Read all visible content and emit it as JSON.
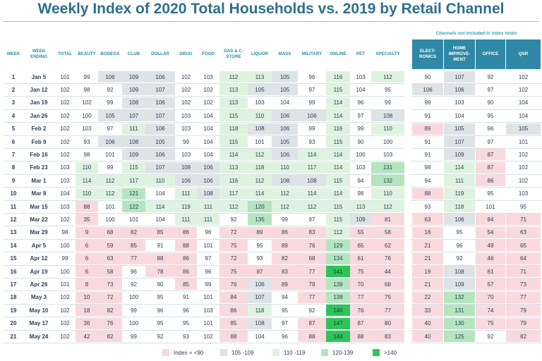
{
  "title": "Weekly Index of 2020 Total Households  vs. 2019 by Retail Channel",
  "note": "Channels not included in index totals",
  "headers": [
    "WEEK",
    "WEEK ENDING",
    "TOTAL",
    "BEAUTY",
    "BODEGA",
    "CLUB",
    "DOLLAR",
    "DRUG",
    "FOOD",
    "GAS & C-STORE",
    "LIQUOR",
    "MASS",
    "MILITARY",
    "ONLINE",
    "PET",
    "SPECIALTY"
  ],
  "excluded_headers": [
    "ELECT-RONICS",
    "HOME IMPROVE-MENT",
    "OFFICE",
    "QSR"
  ],
  "legend": [
    {
      "label": "Index = <90",
      "color": "#f9d9de"
    },
    {
      "label": "105 -109",
      "color": "#dee3e6"
    },
    {
      "label": "110 -119",
      "color": "#def3df"
    },
    {
      "label": "120-139",
      "color": "#b4e5bf"
    },
    {
      "label": ">140",
      "color": "#2fc45a"
    }
  ],
  "rows": [
    {
      "week": "1",
      "date": "Jan 5",
      "values": [
        101,
        99,
        106,
        109,
        106,
        102,
        103,
        112,
        113,
        105,
        96,
        116,
        103,
        112
      ],
      "excluded": [
        90,
        107,
        92,
        102
      ]
    },
    {
      "week": "2",
      "date": "Jan 12",
      "values": [
        102,
        98,
        92,
        109,
        107,
        102,
        102,
        113,
        105,
        105,
        97,
        115,
        104,
        95
      ],
      "excluded": [
        106,
        106,
        97,
        102
      ]
    },
    {
      "week": "3",
      "date": "Jan 19",
      "values": [
        102,
        102,
        99,
        108,
        106,
        102,
        102,
        113,
        103,
        104,
        99,
        114,
        96,
        99
      ],
      "excluded": [
        99,
        103,
        90,
        104
      ]
    },
    {
      "week": "4",
      "date": "Jan 26",
      "values": [
        102,
        100,
        105,
        107,
        107,
        103,
        104,
        115,
        110,
        106,
        106,
        114,
        97,
        108
      ],
      "excluded": [
        91,
        104,
        95,
        104
      ]
    },
    {
      "week": "5",
      "date": "Feb 2",
      "values": [
        102,
        103,
        97,
        111,
        106,
        103,
        104,
        118,
        108,
        106,
        99,
        116,
        99,
        110
      ],
      "excluded": [
        89,
        105,
        96,
        105
      ]
    },
    {
      "week": "6",
      "date": "Feb 9",
      "values": [
        102,
        93,
        106,
        108,
        105,
        99,
        104,
        115,
        101,
        105,
        93,
        115,
        90,
        100
      ],
      "excluded": [
        91,
        107,
        97,
        101
      ]
    },
    {
      "week": "7",
      "date": "Feb 16",
      "values": [
        102,
        98,
        101,
        109,
        106,
        103,
        104,
        114,
        112,
        106,
        114,
        114,
        100,
        103
      ],
      "excluded": [
        91,
        109,
        87,
        102
      ]
    },
    {
      "week": "8",
      "date": "Feb 23",
      "values": [
        103,
        110,
        99,
        115,
        107,
        108,
        106,
        113,
        118,
        110,
        117,
        114,
        103,
        131
      ],
      "excluded": [
        98,
        114,
        87,
        102
      ]
    },
    {
      "week": "9",
      "date": "Mar 1",
      "values": [
        103,
        114,
        112,
        117,
        110,
        106,
        106,
        116,
        112,
        108,
        108,
        115,
        94,
        132
      ],
      "excluded": [
        94,
        111,
        86,
        102
      ]
    },
    {
      "week": "10",
      "date": "Mar 8",
      "values": [
        104,
        110,
        112,
        121,
        104,
        111,
        108,
        117,
        114,
        112,
        114,
        114,
        98,
        110
      ],
      "excluded": [
        88,
        119,
        95,
        103
      ]
    },
    {
      "week": "11",
      "date": "Mar 15",
      "values": [
        103,
        88,
        101,
        122,
        114,
        119,
        111,
        112,
        120,
        112,
        112,
        115,
        113,
        112
      ],
      "excluded": [
        93,
        118,
        101,
        95
      ]
    },
    {
      "week": "12",
      "date": "Mar 22",
      "values": [
        102,
        35,
        100,
        101,
        104,
        111,
        111,
        92,
        135,
        99,
        97,
        115,
        109,
        81
      ],
      "excluded": [
        63,
        106,
        84,
        71
      ]
    },
    {
      "week": "13",
      "date": "Mar 29",
      "values": [
        98,
        9,
        68,
        82,
        85,
        86,
        96,
        72,
        89,
        86,
        83,
        112,
        55,
        58
      ],
      "excluded": [
        16,
        95,
        54,
        63
      ]
    },
    {
      "week": "14",
      "date": "Apr 5",
      "values": [
        100,
        6,
        59,
        85,
        91,
        88,
        101,
        75,
        95,
        89,
        76,
        129,
        65,
        62
      ],
      "excluded": [
        21,
        96,
        49,
        65
      ]
    },
    {
      "week": "15",
      "date": "Apr 12",
      "values": [
        99,
        6,
        63,
        77,
        88,
        86,
        97,
        72,
        93,
        82,
        68,
        134,
        61,
        76
      ],
      "excluded": [
        21,
        92,
        46,
        64
      ]
    },
    {
      "week": "16",
      "date": "Apr 19",
      "values": [
        100,
        6,
        58,
        96,
        78,
        86,
        96,
        75,
        87,
        83,
        77,
        141,
        75,
        44
      ],
      "excluded": [
        19,
        108,
        61,
        71
      ]
    },
    {
      "week": "17",
      "date": "Apr 26",
      "values": [
        101,
        8,
        73,
        92,
        90,
        85,
        99,
        76,
        106,
        89,
        79,
        139,
        70,
        68
      ],
      "excluded": [
        21,
        109,
        57,
        73
      ]
    },
    {
      "week": "18",
      "date": "May 3",
      "values": [
        102,
        10,
        72,
        100,
        95,
        91,
        101,
        84,
        107,
        94,
        77,
        138,
        77,
        75
      ],
      "excluded": [
        22,
        132,
        70,
        77
      ]
    },
    {
      "week": "19",
      "date": "May 10",
      "values": [
        102,
        18,
        82,
        99,
        96,
        96,
        103,
        86,
        118,
        95,
        92,
        146,
        76,
        77
      ],
      "excluded": [
        33,
        131,
        74,
        79
      ]
    },
    {
      "week": "20",
      "date": "May 17",
      "values": [
        102,
        36,
        76,
        100,
        95,
        95,
        101,
        85,
        108,
        97,
        87,
        147,
        87,
        80
      ],
      "excluded": [
        40,
        130,
        75,
        79
      ]
    },
    {
      "week": "21",
      "date": "May 24",
      "values": [
        102,
        42,
        82,
        99,
        92,
        93,
        102,
        88,
        104,
        96,
        88,
        144,
        88,
        83
      ],
      "excluded": [
        40,
        125,
        92,
        82
      ]
    }
  ]
}
